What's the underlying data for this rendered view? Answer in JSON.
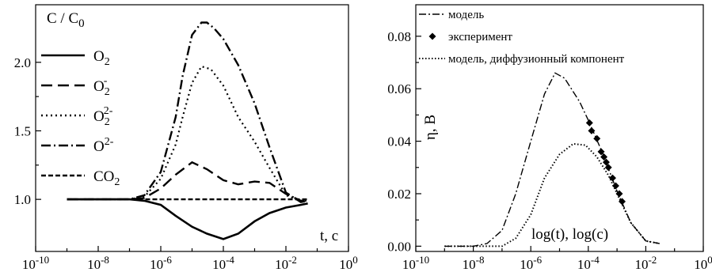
{
  "chart_data": [
    {
      "type": "line",
      "x_scale": "log",
      "xlim": [
        1e-10,
        1
      ],
      "ylim": [
        0.62,
        2.42
      ],
      "xticks": [
        {
          "base": "10",
          "exp": "-10"
        },
        {
          "base": "10",
          "exp": "-8"
        },
        {
          "base": "10",
          "exp": "-6"
        },
        {
          "base": "10",
          "exp": "-4"
        },
        {
          "base": "10",
          "exp": "-2"
        },
        {
          "base": "10",
          "exp": "0"
        }
      ],
      "xtick_values": [
        1e-10,
        1e-08,
        1e-06,
        0.0001,
        0.01,
        1
      ],
      "yticks": [
        "1.0",
        "1.5",
        "2.0"
      ],
      "ytick_values": [
        1.0,
        1.5,
        2.0
      ],
      "ylabel": {
        "base": "C / C",
        "sub": "0"
      },
      "xlabel": "t, c",
      "legend": {
        "position": "top-left",
        "entries": [
          {
            "base": "O",
            "sub": "2",
            "sup": "",
            "style": "solid"
          },
          {
            "base": "O",
            "sub": "2",
            "sup": "-",
            "style": "dash"
          },
          {
            "base": "O",
            "sub": "2",
            "sup": "2-",
            "style": "dot"
          },
          {
            "base": "O",
            "sub": "",
            "sup": "2-",
            "style": "dashdot"
          },
          {
            "base": "CO",
            "sub": "2",
            "sup": "",
            "style": "shortdash"
          }
        ]
      },
      "series": [
        {
          "style": "solid",
          "points": [
            [
              1e-09,
              1.0
            ],
            [
              1e-08,
              1.0
            ],
            [
              1e-07,
              1.0
            ],
            [
              3e-07,
              0.99
            ],
            [
              1e-06,
              0.96
            ],
            [
              3e-06,
              0.88
            ],
            [
              1e-05,
              0.8
            ],
            [
              3e-05,
              0.75
            ],
            [
              0.0001,
              0.71
            ],
            [
              0.0003,
              0.75
            ],
            [
              0.001,
              0.84
            ],
            [
              0.003,
              0.9
            ],
            [
              0.01,
              0.94
            ],
            [
              0.03,
              0.96
            ],
            [
              0.05,
              0.97
            ]
          ]
        },
        {
          "style": "dash",
          "points": [
            [
              1e-09,
              1.0
            ],
            [
              1e-07,
              1.0
            ],
            [
              3e-07,
              1.01
            ],
            [
              1e-06,
              1.08
            ],
            [
              3e-06,
              1.18
            ],
            [
              1e-05,
              1.27
            ],
            [
              3e-05,
              1.22
            ],
            [
              0.0001,
              1.14
            ],
            [
              0.0003,
              1.11
            ],
            [
              0.001,
              1.13
            ],
            [
              0.003,
              1.12
            ],
            [
              0.01,
              1.04
            ],
            [
              0.03,
              0.99
            ],
            [
              0.05,
              0.99
            ]
          ]
        },
        {
          "style": "dot",
          "points": [
            [
              1e-09,
              1.0
            ],
            [
              1e-07,
              1.0
            ],
            [
              3e-07,
              1.02
            ],
            [
              1e-06,
              1.15
            ],
            [
              3e-06,
              1.4
            ],
            [
              5e-06,
              1.6
            ],
            [
              1e-05,
              1.85
            ],
            [
              2e-05,
              1.97
            ],
            [
              4e-05,
              1.95
            ],
            [
              0.0001,
              1.83
            ],
            [
              0.0003,
              1.6
            ],
            [
              0.001,
              1.42
            ],
            [
              0.003,
              1.23
            ],
            [
              0.01,
              1.03
            ],
            [
              0.03,
              0.99
            ],
            [
              0.05,
              0.99
            ]
          ]
        },
        {
          "style": "dashdot",
          "points": [
            [
              1e-09,
              1.0
            ],
            [
              1e-07,
              1.0
            ],
            [
              3e-07,
              1.03
            ],
            [
              1e-06,
              1.2
            ],
            [
              3e-06,
              1.6
            ],
            [
              5e-06,
              1.9
            ],
            [
              1e-05,
              2.2
            ],
            [
              2e-05,
              2.29
            ],
            [
              3e-05,
              2.29
            ],
            [
              5e-05,
              2.25
            ],
            [
              0.0001,
              2.17
            ],
            [
              0.0003,
              1.98
            ],
            [
              0.001,
              1.7
            ],
            [
              0.003,
              1.38
            ],
            [
              0.01,
              1.05
            ],
            [
              0.03,
              0.98
            ],
            [
              0.05,
              0.99
            ]
          ]
        },
        {
          "style": "shortdash",
          "points": [
            [
              1e-09,
              1.0
            ],
            [
              0.01,
              1.0
            ],
            [
              0.03,
              1.0
            ],
            [
              0.05,
              1.0
            ]
          ]
        }
      ]
    },
    {
      "type": "line",
      "x_scale": "log",
      "xlim": [
        1e-10,
        1
      ],
      "ylim": [
        -0.002,
        0.092
      ],
      "xticks": [
        {
          "base": "10",
          "exp": "-10"
        },
        {
          "base": "10",
          "exp": "-8"
        },
        {
          "base": "10",
          "exp": "-6"
        },
        {
          "base": "10",
          "exp": "-4"
        },
        {
          "base": "10",
          "exp": "-2"
        },
        {
          "base": "10",
          "exp": "0"
        }
      ],
      "xtick_values": [
        1e-10,
        1e-08,
        1e-06,
        0.0001,
        0.01,
        1
      ],
      "yticks": [
        "0.00",
        "0.02",
        "0.04",
        "0.06",
        "0.08"
      ],
      "ytick_values": [
        0.0,
        0.02,
        0.04,
        0.06,
        0.08
      ],
      "ylabel": "η,  B",
      "xlabel": "log(t), log(c)",
      "legend": {
        "position": "top-right",
        "entries": [
          {
            "label": "модель",
            "style": "dashdot"
          },
          {
            "label": "эксперимент",
            "style": "diamond"
          },
          {
            "label": "модель, диффузионный компонент",
            "style": "dot"
          }
        ]
      },
      "series": [
        {
          "style": "dashdot",
          "points": [
            [
              1e-09,
              0.0
            ],
            [
              1e-08,
              0.0
            ],
            [
              3e-08,
              0.001
            ],
            [
              1e-07,
              0.006
            ],
            [
              3e-07,
              0.02
            ],
            [
              1e-06,
              0.04
            ],
            [
              3e-06,
              0.058
            ],
            [
              7e-06,
              0.066
            ],
            [
              1.5e-05,
              0.064
            ],
            [
              5e-05,
              0.055
            ],
            [
              0.0001,
              0.048
            ],
            [
              0.0003,
              0.036
            ],
            [
              0.001,
              0.021
            ],
            [
              0.003,
              0.009
            ],
            [
              0.01,
              0.002
            ],
            [
              0.03,
              0.001
            ]
          ]
        },
        {
          "style": "dot",
          "points": [
            [
              1e-09,
              0.0
            ],
            [
              1e-07,
              0.0
            ],
            [
              3e-07,
              0.003
            ],
            [
              1e-06,
              0.012
            ],
            [
              3e-06,
              0.026
            ],
            [
              1e-05,
              0.035
            ],
            [
              3e-05,
              0.039
            ],
            [
              8e-05,
              0.0385
            ],
            [
              0.0002,
              0.034
            ],
            [
              0.0005,
              0.027
            ],
            [
              0.001,
              0.02
            ],
            [
              0.003,
              0.009
            ],
            [
              0.01,
              0.002
            ],
            [
              0.03,
              0.001
            ]
          ]
        },
        {
          "style": "diamond",
          "points": [
            [
              0.00011,
              0.047
            ],
            [
              0.00013,
              0.044
            ],
            [
              0.0002,
              0.041
            ],
            [
              0.00028,
              0.036
            ],
            [
              0.00035,
              0.034
            ],
            [
              0.00042,
              0.032
            ],
            [
              0.0005,
              0.03
            ],
            [
              0.0007,
              0.026
            ],
            [
              0.0009,
              0.023
            ],
            [
              0.0012,
              0.02
            ],
            [
              0.0015,
              0.017
            ]
          ]
        }
      ]
    }
  ]
}
